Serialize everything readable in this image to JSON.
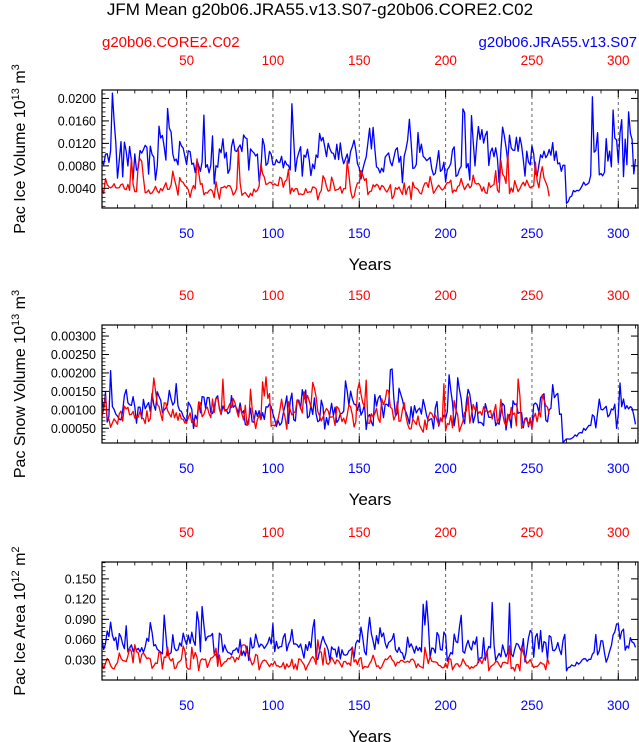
{
  "title": "JFM Mean g20b06.JRA55.v13.S07-g20b06.CORE2.C02",
  "legend": {
    "left_label": "g20b06.CORE2.C02",
    "right_label": "g20b06.JRA55.v13.S07"
  },
  "colors": {
    "core2": "#ff0000",
    "jra55": "#0000ff",
    "axis": "#000000",
    "grid": "#666666"
  },
  "chart_data": [
    {
      "type": "line",
      "ylabel_main": "Pac Ice Volume 10",
      "ylabel_exp": "13",
      "ylabel_unit": " m",
      "ylabel_unit_exp": "3",
      "xlabel": "Years",
      "xlim": [
        1,
        312
      ],
      "ylim": [
        0.0005,
        0.0215
      ],
      "yticks": [
        0.004,
        0.008,
        0.012,
        0.016,
        0.02
      ],
      "ytick_labels": [
        "0.0040",
        "0.0080",
        "0.0120",
        "0.0160",
        "0.0200"
      ],
      "xticks": [
        50,
        100,
        150,
        200,
        250,
        300
      ],
      "xtick_labels": [
        "50",
        "100",
        "150",
        "200",
        "250",
        "300"
      ],
      "series": [
        {
          "name": "g20b06.JRA55.v13.S07",
          "color": "jra55",
          "years": [
            1,
            310
          ],
          "base": 0.0078,
          "amp": 0.0052,
          "min": 0.0012,
          "peak": 0.021,
          "gap": [
            270,
            284
          ],
          "seed": 3
        },
        {
          "name": "g20b06.CORE2.C02",
          "color": "core2",
          "years": [
            1,
            260
          ],
          "base": 0.0032,
          "amp": 0.0022,
          "min": 0.0008,
          "peak": 0.0112,
          "gap": null,
          "seed": 7
        }
      ]
    },
    {
      "type": "line",
      "ylabel_main": "Pac Snow Volume 10",
      "ylabel_exp": "13",
      "ylabel_unit": " m",
      "ylabel_unit_exp": "3",
      "xlabel": "Years",
      "xlim": [
        1,
        312
      ],
      "ylim": [
        0.0001,
        0.0033
      ],
      "yticks": [
        0.0005,
        0.001,
        0.0015,
        0.002,
        0.0025,
        0.003
      ],
      "ytick_labels": [
        "0.00050",
        "0.00100",
        "0.00150",
        "0.00200",
        "0.00250",
        "0.00300"
      ],
      "xticks": [
        50,
        100,
        150,
        200,
        250,
        300
      ],
      "xtick_labels": [
        "50",
        "100",
        "150",
        "200",
        "250",
        "300"
      ],
      "series": [
        {
          "name": "g20b06.JRA55.v13.S07",
          "color": "jra55",
          "years": [
            1,
            310
          ],
          "base": 0.00075,
          "amp": 0.00058,
          "min": 8e-05,
          "peak": 0.0022,
          "gap": [
            268,
            284
          ],
          "seed": 11
        },
        {
          "name": "g20b06.CORE2.C02",
          "color": "core2",
          "years": [
            1,
            260
          ],
          "base": 0.00068,
          "amp": 0.00052,
          "min": 8e-05,
          "peak": 0.0019,
          "gap": null,
          "seed": 5
        }
      ]
    },
    {
      "type": "line",
      "ylabel_main": "Pac Ice Area 10",
      "ylabel_exp": "12",
      "ylabel_unit": " m",
      "ylabel_unit_exp": "2",
      "xlabel": "Years",
      "xlim": [
        1,
        312
      ],
      "ylim": [
        0.0,
        0.175
      ],
      "yticks": [
        0.03,
        0.06,
        0.09,
        0.12,
        0.15
      ],
      "ytick_labels": [
        "0.030",
        "0.060",
        "0.090",
        "0.120",
        "0.150"
      ],
      "xticks": [
        50,
        100,
        150,
        200,
        250,
        300
      ],
      "xtick_labels": [
        "50",
        "100",
        "150",
        "200",
        "250",
        "300"
      ],
      "series": [
        {
          "name": "g20b06.JRA55.v13.S07",
          "color": "jra55",
          "years": [
            1,
            310
          ],
          "base": 0.042,
          "amp": 0.028,
          "min": 0.012,
          "peak": 0.122,
          "gap": [
            270,
            284
          ],
          "seed": 19
        },
        {
          "name": "g20b06.CORE2.C02",
          "color": "core2",
          "years": [
            1,
            260
          ],
          "base": 0.021,
          "amp": 0.015,
          "min": 0.004,
          "peak": 0.06,
          "gap": null,
          "seed": 23
        }
      ]
    }
  ]
}
